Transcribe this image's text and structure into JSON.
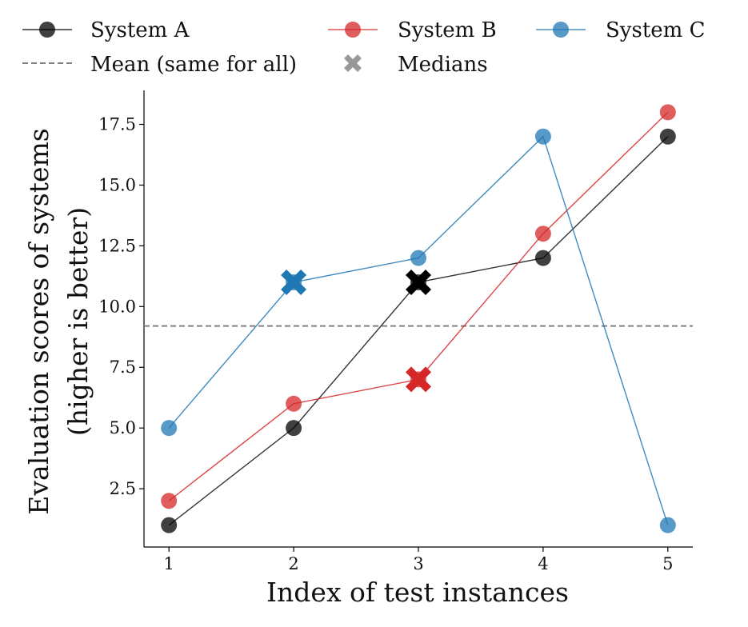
{
  "chart_data": {
    "type": "line",
    "title": "",
    "xlabel": "Index of test instances",
    "ylabel_lines": [
      "Evaluation scores of systems",
      "(higher is better)"
    ],
    "x": [
      1,
      2,
      3,
      4,
      5
    ],
    "x_ticks": [
      "1",
      "2",
      "3",
      "4",
      "5"
    ],
    "y_ticks": [
      "2.5",
      "5.0",
      "7.5",
      "10.0",
      "12.5",
      "15.0",
      "17.5"
    ],
    "xlim": [
      0.8,
      5.2
    ],
    "ylim": [
      0.1,
      18.9
    ],
    "series": [
      {
        "name": "System A",
        "color": "#333333",
        "values": [
          1,
          5,
          11,
          12,
          17
        ],
        "median_x": 3,
        "median": 11
      },
      {
        "name": "System B",
        "color": "#d62728",
        "values": [
          2,
          6,
          7,
          13,
          18
        ],
        "median_x": 3,
        "median": 7
      },
      {
        "name": "System C",
        "color": "#1f77b4",
        "values": [
          5,
          11,
          12,
          17,
          1
        ],
        "median_x": 2,
        "median": 11
      }
    ],
    "mean": {
      "label": "Mean (same for all)",
      "value": 9.2,
      "color": "#808080"
    },
    "medians_label": "Medians",
    "grid": false,
    "legend_position": "top"
  }
}
